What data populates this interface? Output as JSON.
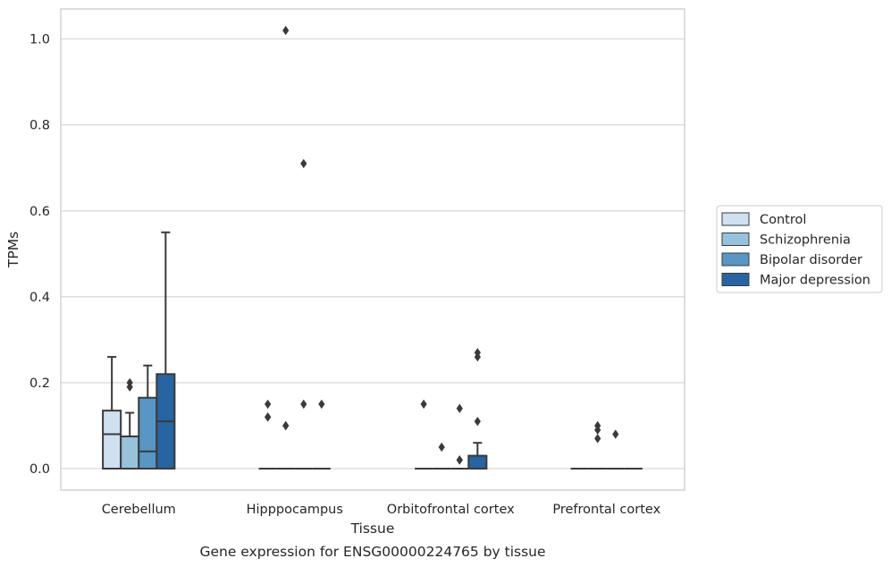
{
  "chart_data": {
    "type": "box",
    "xlabel": "Tissue",
    "ylabel": "TPMs",
    "caption": "Gene expression for ENSG00000224765 by tissue",
    "ylim": [
      -0.05,
      1.07
    ],
    "yticks": [
      "0.0",
      "0.2",
      "0.4",
      "0.6",
      "0.8",
      "1.0"
    ],
    "categories": [
      "Cerebellum",
      "Hipppocampus",
      "Orbitofrontal cortex",
      "Prefrontal cortex"
    ],
    "grid": "horizontal",
    "legend_position": "right",
    "series": [
      {
        "name": "Control",
        "color": "#cfe1f1",
        "boxes": [
          {
            "whislo": 0,
            "q1": 0,
            "med": 0.08,
            "q3": 0.135,
            "whishi": 0.26,
            "fliers": []
          },
          {
            "whislo": 0,
            "q1": 0,
            "med": 0,
            "q3": 0,
            "whishi": 0,
            "fliers": [
              0.15,
              0.12,
              0.12
            ]
          },
          {
            "whislo": 0,
            "q1": 0,
            "med": 0,
            "q3": 0,
            "whishi": 0,
            "fliers": [
              0.15
            ]
          },
          {
            "whislo": 0,
            "q1": 0,
            "med": 0,
            "q3": 0,
            "whishi": 0,
            "fliers": []
          }
        ]
      },
      {
        "name": "Schizophrenia",
        "color": "#98c2dc",
        "boxes": [
          {
            "whislo": 0,
            "q1": 0,
            "med": 0.075,
            "q3": 0.075,
            "whishi": 0.13,
            "fliers": [
              0.2,
              0.19
            ]
          },
          {
            "whislo": 0,
            "q1": 0,
            "med": 0,
            "q3": 0,
            "whishi": 0,
            "fliers": [
              1.02,
              0.1,
              0.1
            ]
          },
          {
            "whislo": 0,
            "q1": 0,
            "med": 0,
            "q3": 0,
            "whishi": 0,
            "fliers": [
              0.05
            ]
          },
          {
            "whislo": 0,
            "q1": 0,
            "med": 0,
            "q3": 0,
            "whishi": 0,
            "fliers": [
              0.1,
              0.09,
              0.07
            ]
          }
        ]
      },
      {
        "name": "Bipolar disorder",
        "color": "#5796c5",
        "boxes": [
          {
            "whislo": 0,
            "q1": 0,
            "med": 0.04,
            "q3": 0.165,
            "whishi": 0.24,
            "fliers": []
          },
          {
            "whislo": 0,
            "q1": 0,
            "med": 0,
            "q3": 0,
            "whishi": 0,
            "fliers": [
              0.71,
              0.15
            ]
          },
          {
            "whislo": 0,
            "q1": 0,
            "med": 0,
            "q3": 0,
            "whishi": 0,
            "fliers": [
              0.14,
              0.02,
              0.02
            ]
          },
          {
            "whislo": 0,
            "q1": 0,
            "med": 0,
            "q3": 0,
            "whishi": 0,
            "fliers": [
              0.08
            ]
          }
        ]
      },
      {
        "name": "Major depression",
        "color": "#2864a2",
        "boxes": [
          {
            "whislo": 0,
            "q1": 0,
            "med": 0.11,
            "q3": 0.22,
            "whishi": 0.55,
            "fliers": []
          },
          {
            "whislo": 0,
            "q1": 0,
            "med": 0,
            "q3": 0,
            "whishi": 0,
            "fliers": [
              0.15
            ]
          },
          {
            "whislo": 0,
            "q1": 0,
            "med": 0,
            "q3": 0.03,
            "whishi": 0.06,
            "fliers": [
              0.27,
              0.26,
              0.11
            ]
          },
          {
            "whislo": 0,
            "q1": 0,
            "med": 0,
            "q3": 0,
            "whishi": 0,
            "fliers": []
          }
        ]
      }
    ]
  }
}
